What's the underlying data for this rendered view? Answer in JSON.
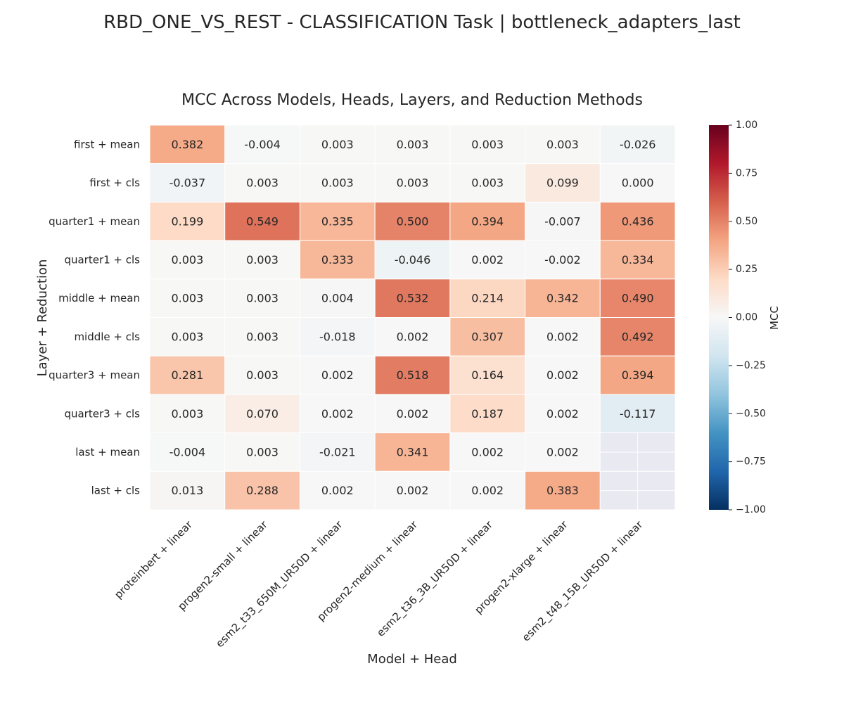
{
  "figure_title": "RBD_ONE_VS_REST - CLASSIFICATION Task | bottleneck_adapters_last",
  "chart_data": {
    "type": "heatmap",
    "title": "MCC Across Models, Heads, Layers, and Reduction Methods",
    "xlabel": "Model + Head",
    "ylabel": "Layer + Reduction",
    "x_categories": [
      "proteinbert + linear",
      "progen2-small + linear",
      "esm2_t33_650M_UR50D + linear",
      "progen2-medium + linear",
      "esm2_t36_3B_UR50D + linear",
      "progen2-xlarge + linear",
      "esm2_t48_15B_UR50D + linear"
    ],
    "y_categories": [
      "first + mean",
      "first + cls",
      "quarter1 + mean",
      "quarter1 + cls",
      "middle + mean",
      "middle + cls",
      "quarter3 + mean",
      "quarter3 + cls",
      "last + mean",
      "last + cls"
    ],
    "values": [
      [
        0.382,
        -0.004,
        0.003,
        0.003,
        0.003,
        0.003,
        -0.026
      ],
      [
        -0.037,
        0.003,
        0.003,
        0.003,
        0.003,
        0.099,
        0.0
      ],
      [
        0.199,
        0.549,
        0.335,
        0.5,
        0.394,
        -0.007,
        0.436
      ],
      [
        0.003,
        0.003,
        0.333,
        -0.046,
        0.002,
        -0.002,
        0.334
      ],
      [
        0.003,
        0.003,
        0.004,
        0.532,
        0.214,
        0.342,
        0.49
      ],
      [
        0.003,
        0.003,
        -0.018,
        0.002,
        0.307,
        0.002,
        0.492
      ],
      [
        0.281,
        0.003,
        0.002,
        0.518,
        0.164,
        0.002,
        0.394
      ],
      [
        0.003,
        0.07,
        0.002,
        0.002,
        0.187,
        0.002,
        -0.117
      ],
      [
        -0.004,
        0.003,
        -0.021,
        0.341,
        0.002,
        0.002,
        null
      ],
      [
        0.013,
        0.288,
        0.002,
        0.002,
        0.002,
        0.383,
        null
      ]
    ],
    "value_format": "3 decimals",
    "colorbar": {
      "label": "MCC",
      "colormap": "RdBu_r",
      "vmin": -1.0,
      "vmax": 1.0,
      "ticks": [
        1.0,
        0.75,
        0.5,
        0.25,
        0.0,
        -0.25,
        -0.5,
        -0.75,
        -1.0
      ],
      "tick_labels": [
        "1.00",
        "0.75",
        "0.50",
        "0.25",
        "0.00",
        "−0.25",
        "−0.50",
        "−0.75",
        "−1.00"
      ]
    },
    "missing_cell_color": "#e9e9f1"
  }
}
